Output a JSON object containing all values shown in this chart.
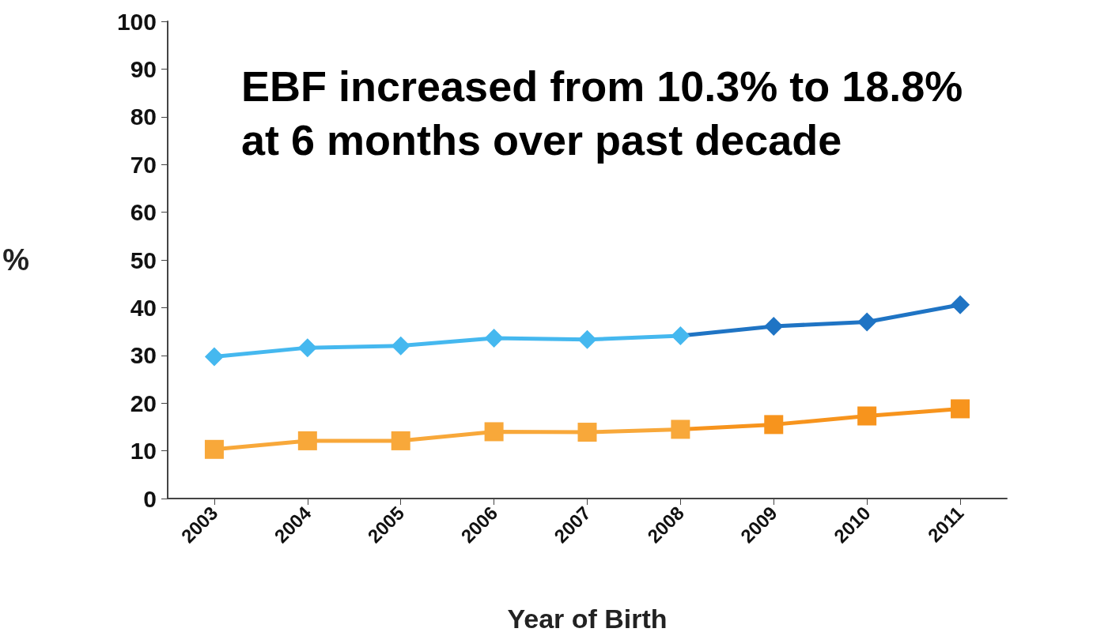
{
  "chart_data": {
    "type": "line",
    "xlabel": "Year of Birth",
    "ylabel": "%",
    "annotations": [
      "EBF increased from 10.3% to 18.8%\nat 6 months over past decade"
    ],
    "categories": [
      "2003",
      "2004",
      "2005",
      "2006",
      "2007",
      "2008",
      "2009",
      "2010",
      "2011"
    ],
    "series": [
      {
        "marker": "diamond",
        "colors": [
          "#45b8ef",
          "#45b8ef",
          "#45b8ef",
          "#45b8ef",
          "#45b8ef",
          "#45b8ef",
          "#1f74c4",
          "#1f74c4",
          "#1f74c4"
        ],
        "values": [
          29.7,
          31.6,
          32,
          33.6,
          33.3,
          34.1,
          36.1,
          37,
          40.6
        ]
      },
      {
        "marker": "square",
        "colors": [
          "#f8a83a",
          "#f8a83a",
          "#f8a83a",
          "#f8a83a",
          "#f8a83a",
          "#f8a83a",
          "#f7941d",
          "#f7941d",
          "#f7941d"
        ],
        "values": [
          10.3,
          12.1,
          12.1,
          14,
          13.9,
          14.5,
          15.5,
          17.3,
          18.8
        ]
      }
    ],
    "ylim": [
      0,
      100
    ],
    "yticks": [
      0,
      10,
      20,
      30,
      40,
      50,
      60,
      70,
      80,
      90,
      100
    ],
    "grid": false
  }
}
